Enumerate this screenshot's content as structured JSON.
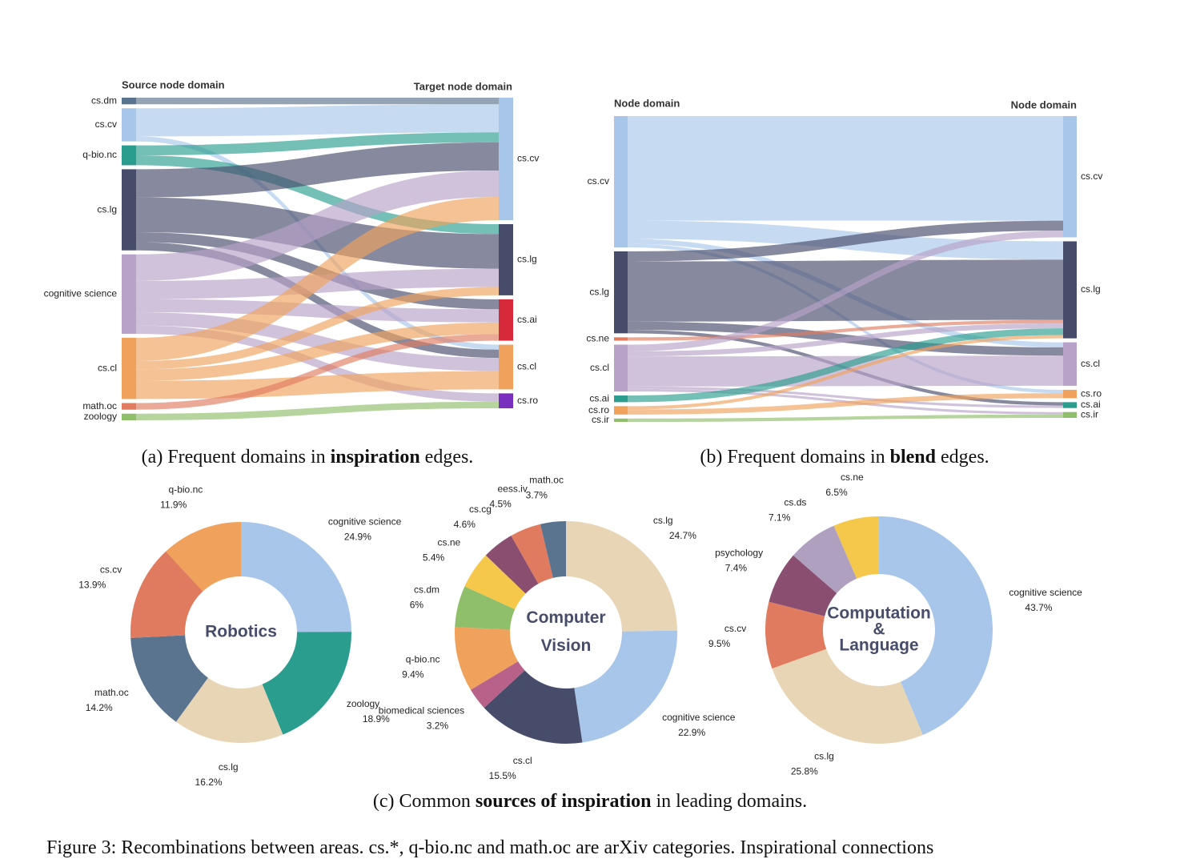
{
  "chart_data": [
    {
      "type": "sankey",
      "source_title": "Source node domain",
      "target_title": "Target node domain",
      "sources": [
        {
          "name": "cs.dm",
          "color": "#5a738e"
        },
        {
          "name": "cs.cv",
          "color": "#a8c6ea"
        },
        {
          "name": "q-bio.nc",
          "color": "#2a9d8f"
        },
        {
          "name": "cs.lg",
          "color": "#474c6b"
        },
        {
          "name": "cognitive science",
          "color": "#b8a2c8"
        },
        {
          "name": "cs.cl",
          "color": "#f0a15c"
        },
        {
          "name": "math.oc",
          "color": "#e07b5f"
        },
        {
          "name": "zoology",
          "color": "#8fbf6a"
        }
      ],
      "targets": [
        {
          "name": "cs.cv",
          "color": "#a8c6ea"
        },
        {
          "name": "cs.lg",
          "color": "#474c6b"
        },
        {
          "name": "cs.ai",
          "color": "#d62a3a"
        },
        {
          "name": "cs.cl",
          "color": "#f0a15c"
        },
        {
          "name": "cs.ro",
          "color": "#7b2fbf"
        }
      ],
      "links": [
        {
          "source": 0,
          "target": 0,
          "value": 8
        },
        {
          "source": 1,
          "target": 0,
          "value": 34
        },
        {
          "source": 1,
          "target": 3,
          "value": 6
        },
        {
          "source": 2,
          "target": 0,
          "value": 12
        },
        {
          "source": 2,
          "target": 1,
          "value": 12
        },
        {
          "source": 3,
          "target": 0,
          "value": 34
        },
        {
          "source": 3,
          "target": 1,
          "value": 42
        },
        {
          "source": 3,
          "target": 2,
          "value": 12
        },
        {
          "source": 3,
          "target": 3,
          "value": 10
        },
        {
          "source": 4,
          "target": 0,
          "value": 32
        },
        {
          "source": 4,
          "target": 1,
          "value": 22
        },
        {
          "source": 4,
          "target": 2,
          "value": 16
        },
        {
          "source": 4,
          "target": 3,
          "value": 16
        },
        {
          "source": 4,
          "target": 4,
          "value": 10
        },
        {
          "source": 5,
          "target": 0,
          "value": 28
        },
        {
          "source": 5,
          "target": 1,
          "value": 10
        },
        {
          "source": 5,
          "target": 2,
          "value": 14
        },
        {
          "source": 5,
          "target": 3,
          "value": 22
        },
        {
          "source": 6,
          "target": 2,
          "value": 8
        },
        {
          "source": 7,
          "target": 4,
          "value": 8
        }
      ],
      "caption": {
        "prefix": "(a) Frequent domains in",
        "bold": "inspiration",
        "suffix": "edges."
      }
    },
    {
      "type": "sankey",
      "source_title": "Node domain",
      "target_title": "Node domain",
      "sources": [
        {
          "name": "cs.cv",
          "color": "#a8c6ea"
        },
        {
          "name": "cs.lg",
          "color": "#474c6b"
        },
        {
          "name": "cs.ne",
          "color": "#e07b5f"
        },
        {
          "name": "cs.cl",
          "color": "#b8a2c8"
        },
        {
          "name": "cs.ai",
          "color": "#2a9d8f"
        },
        {
          "name": "cs.ro",
          "color": "#f0a15c"
        },
        {
          "name": "cs.ir",
          "color": "#8fbf6a"
        }
      ],
      "targets": [
        {
          "name": "cs.cv",
          "color": "#a8c6ea"
        },
        {
          "name": "cs.lg",
          "color": "#474c6b"
        },
        {
          "name": "cs.cl",
          "color": "#b8a2c8"
        },
        {
          "name": "cs.ro",
          "color": "#f0a15c"
        },
        {
          "name": "cs.ai",
          "color": "#2a9d8f"
        },
        {
          "name": "cs.ir",
          "color": "#8fbf6a"
        }
      ],
      "links": [
        {
          "source": 0,
          "target": 0,
          "value": 125
        },
        {
          "source": 0,
          "target": 1,
          "value": 22
        },
        {
          "source": 0,
          "target": 2,
          "value": 6
        },
        {
          "source": 0,
          "target": 3,
          "value": 4
        },
        {
          "source": 1,
          "target": 0,
          "value": 12
        },
        {
          "source": 1,
          "target": 1,
          "value": 72
        },
        {
          "source": 1,
          "target": 2,
          "value": 10
        },
        {
          "source": 1,
          "target": 4,
          "value": 4
        },
        {
          "source": 2,
          "target": 1,
          "value": 4
        },
        {
          "source": 3,
          "target": 0,
          "value": 8
        },
        {
          "source": 3,
          "target": 1,
          "value": 6
        },
        {
          "source": 3,
          "target": 2,
          "value": 36
        },
        {
          "source": 3,
          "target": 4,
          "value": 3
        },
        {
          "source": 3,
          "target": 5,
          "value": 3
        },
        {
          "source": 4,
          "target": 1,
          "value": 8
        },
        {
          "source": 5,
          "target": 1,
          "value": 4
        },
        {
          "source": 5,
          "target": 3,
          "value": 6
        },
        {
          "source": 6,
          "target": 5,
          "value": 4
        }
      ],
      "caption": {
        "prefix": "(b) Frequent domains in",
        "bold": "blend",
        "suffix": "edges."
      }
    },
    {
      "type": "pie",
      "center_label": [
        "Robotics"
      ],
      "categories": [
        "cognitive science",
        "zoology",
        "cs.lg",
        "math.oc",
        "cs.cv",
        "q-bio.nc"
      ],
      "values": [
        24.9,
        18.9,
        16.2,
        14.2,
        13.9,
        11.9
      ],
      "value_labels": [
        "24.9%",
        "18.9%",
        "16.2%",
        "14.2%",
        "13.9%",
        "11.9%"
      ],
      "colors": [
        "#a8c6ea",
        "#2a9d8f",
        "#e8d5b5",
        "#5a738e",
        "#e07b5f",
        "#f0a15c"
      ]
    },
    {
      "type": "pie",
      "center_label": [
        "Computer",
        "Vision"
      ],
      "categories": [
        "cs.lg",
        "cognitive science",
        "cs.cl",
        "biomedical sciences",
        "q-bio.nc",
        "cs.dm",
        "cs.ne",
        "cs.cg",
        "eess.iv",
        "math.oc"
      ],
      "values": [
        24.7,
        22.9,
        15.5,
        3.2,
        9.4,
        6,
        5.4,
        4.6,
        4.5,
        3.7
      ],
      "value_labels": [
        "24.7%",
        "22.9%",
        "15.5%",
        "3.2%",
        "9.4%",
        "6%",
        "5.4%",
        "4.6%",
        "4.5%",
        "3.7%"
      ],
      "colors": [
        "#e8d5b5",
        "#a8c6ea",
        "#474c6b",
        "#b8628a",
        "#f0a15c",
        "#8fbf6a",
        "#f5c84c",
        "#8a4e70",
        "#e07b5f",
        "#5a738e"
      ]
    },
    {
      "type": "pie",
      "center_label": [
        "Computation",
        "&",
        "Language"
      ],
      "categories": [
        "cognitive science",
        "cs.lg",
        "cs.cv",
        "psychology",
        "cs.ds",
        "cs.ne"
      ],
      "values": [
        43.7,
        25.8,
        9.5,
        7.4,
        7.1,
        6.5
      ],
      "value_labels": [
        "43.7%",
        "25.8%",
        "9.5%",
        "7.4%",
        "7.1%",
        "6.5%"
      ],
      "colors": [
        "#a8c6ea",
        "#e8d5b5",
        "#e07b5f",
        "#8a4e70",
        "#b0a0c0",
        "#f5c84c"
      ]
    }
  ],
  "caption_c": {
    "prefix": "(c) Common",
    "bold": "sources of inspiration",
    "suffix": "in leading domains."
  },
  "figure_caption": "Figure 3: Recombinations between areas. cs.*, q-bio.nc and math.oc are arXiv categories. Inspirational connections"
}
